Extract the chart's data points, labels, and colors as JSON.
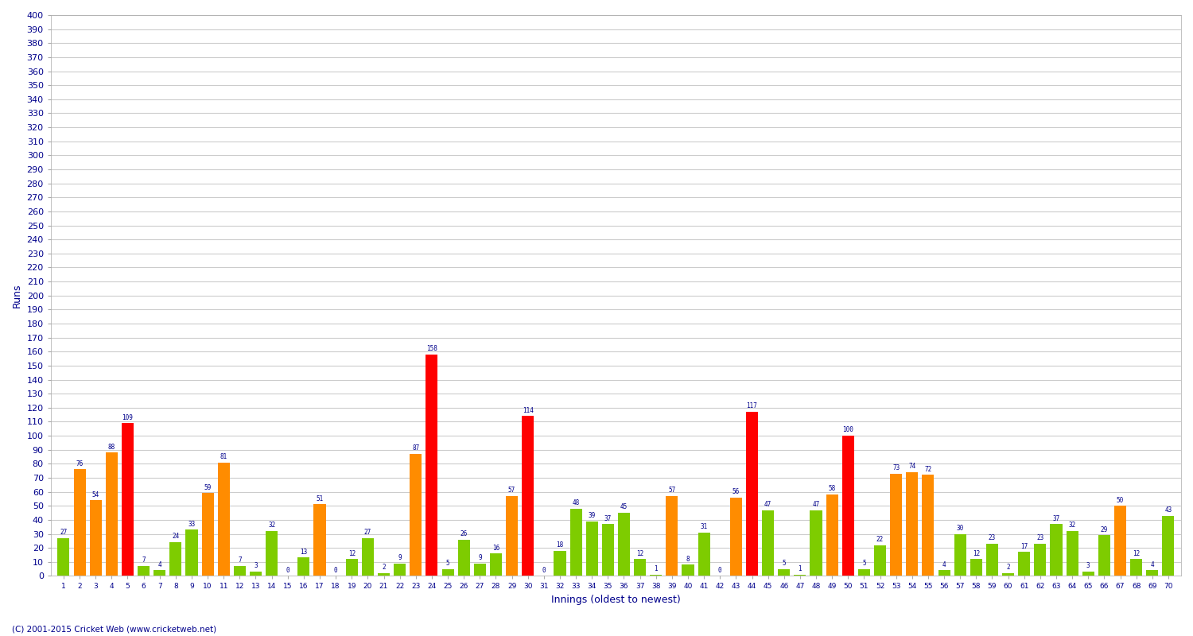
{
  "innings": [
    1,
    2,
    3,
    4,
    5,
    6,
    7,
    8,
    9,
    10,
    11,
    12,
    13,
    14,
    15,
    16,
    17,
    18,
    19,
    20,
    21,
    22,
    23,
    24,
    25,
    26,
    27,
    28,
    29,
    30,
    31,
    32,
    33,
    34,
    35,
    36,
    37,
    38,
    39,
    40,
    41,
    42,
    43,
    44,
    45,
    46,
    47,
    48,
    49,
    50,
    51,
    52,
    53,
    54,
    55,
    56,
    57,
    58,
    59,
    60,
    61,
    62,
    63,
    64,
    65,
    66,
    67,
    68,
    69,
    70
  ],
  "scores": [
    27,
    76,
    54,
    88,
    109,
    7,
    4,
    24,
    33,
    59,
    81,
    7,
    3,
    32,
    0,
    13,
    51,
    0,
    12,
    27,
    2,
    9,
    87,
    158,
    5,
    26,
    9,
    16,
    57,
    114,
    0,
    18,
    48,
    39,
    37,
    45,
    12,
    1,
    57,
    8,
    31,
    0,
    56,
    117,
    47,
    5,
    1,
    47,
    58,
    100,
    5,
    22,
    73,
    74,
    72,
    4,
    30,
    12,
    23,
    2,
    17,
    23,
    37,
    32,
    3,
    29,
    50,
    12,
    4,
    43
  ],
  "ylabel": "Runs",
  "xlabel": "Innings (oldest to newest)",
  "ylim": [
    0,
    400
  ],
  "ytick_step": 10,
  "color_century": "#ff0000",
  "color_fifty": "#ff8c00",
  "color_normal": "#7ecc00",
  "plot_bg_color": "#ffffff",
  "fig_bg_color": "#ffffff",
  "grid_color": "#cccccc",
  "footer": "(C) 2001-2015 Cricket Web (www.cricketweb.net)",
  "label_color": "#00008b",
  "tick_label_color": "#00008b"
}
